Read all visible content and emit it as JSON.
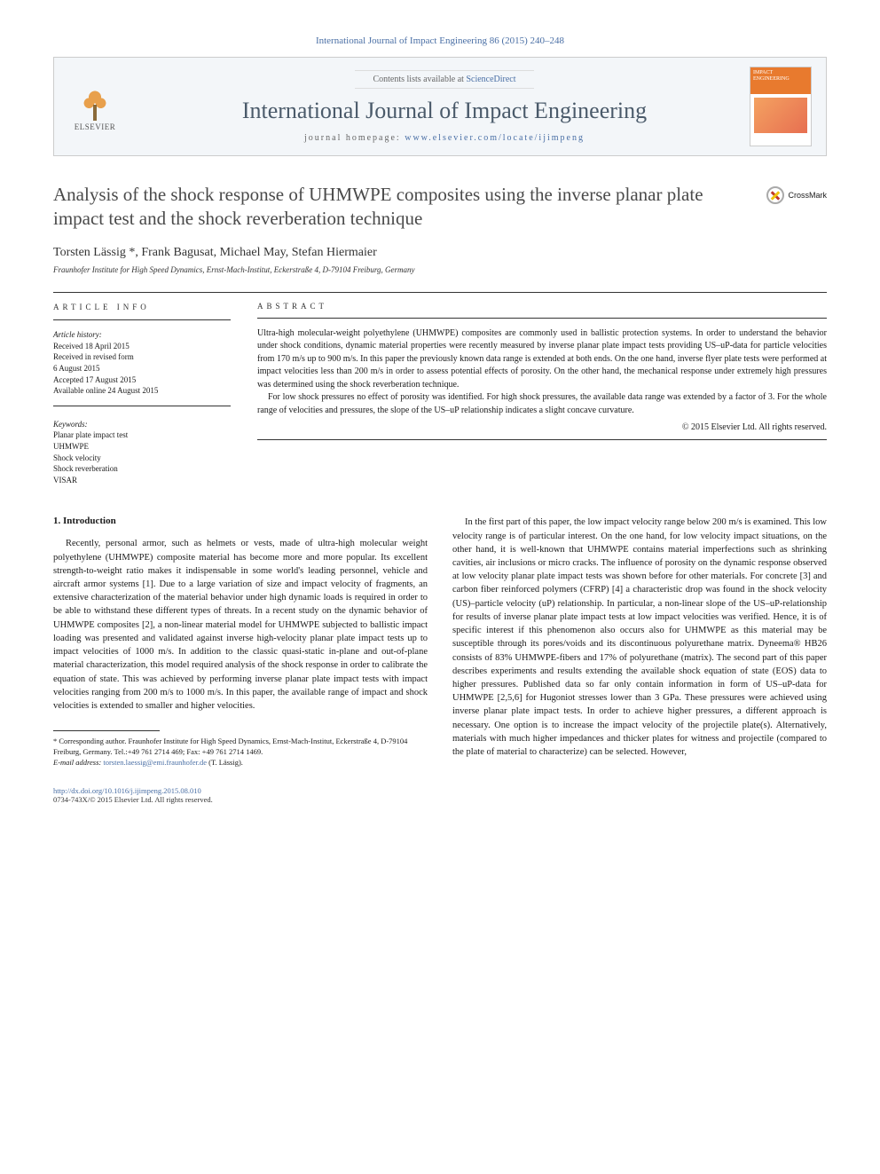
{
  "header": {
    "citation": "International Journal of Impact Engineering 86 (2015) 240–248",
    "contents_prefix": "Contents lists available at ",
    "contents_link": "ScienceDirect",
    "journal_title": "International Journal of Impact Engineering",
    "homepage_prefix": "journal homepage: ",
    "homepage_url": "www.elsevier.com/locate/ijimpeng",
    "publisher": "ELSEVIER",
    "cover_label": "IMPACT ENGINEERING"
  },
  "crossmark": "CrossMark",
  "title": "Analysis of the shock response of UHMWPE composites using the inverse planar plate impact test and the shock reverberation technique",
  "authors": "Torsten Lässig *, Frank Bagusat, Michael May, Stefan Hiermaier",
  "affiliation": "Fraunhofer Institute for High Speed Dynamics, Ernst-Mach-Institut, Eckerstraße 4, D-79104 Freiburg, Germany",
  "article_info": {
    "heading": "ARTICLE INFO",
    "history_label": "Article history:",
    "received": "Received 18 April 2015",
    "revised": "Received in revised form",
    "revised_date": "6 August 2015",
    "accepted": "Accepted 17 August 2015",
    "online": "Available online 24 August 2015",
    "keywords_label": "Keywords:",
    "keywords": [
      "Planar plate impact test",
      "UHMWPE",
      "Shock velocity",
      "Shock reverberation",
      "VISAR"
    ]
  },
  "abstract": {
    "heading": "ABSTRACT",
    "p1": "Ultra-high molecular-weight polyethylene (UHMWPE) composites are commonly used in ballistic protection systems. In order to understand the behavior under shock conditions, dynamic material properties were recently measured by inverse planar plate impact tests providing US–uP-data for particle velocities from 170 m/s up to 900 m/s. In this paper the previously known data range is extended at both ends. On the one hand, inverse flyer plate tests were performed at impact velocities less than 200 m/s in order to assess potential effects of porosity. On the other hand, the mechanical response under extremely high pressures was determined using the shock reverberation technique.",
    "p2": "For low shock pressures no effect of porosity was identified. For high shock pressures, the available data range was extended by a factor of 3. For the whole range of velocities and pressures, the slope of the US–uP relationship indicates a slight concave curvature.",
    "copyright": "© 2015 Elsevier Ltd. All rights reserved."
  },
  "body": {
    "section_num": "1.",
    "section_title": "Introduction",
    "col1_p1": "Recently, personal armor, such as helmets or vests, made of ultra-high molecular weight polyethylene (UHMWPE) composite material has become more and more popular. Its excellent strength-to-weight ratio makes it indispensable in some world's leading personnel, vehicle and aircraft armor systems [1]. Due to a large variation of size and impact velocity of fragments, an extensive characterization of the material behavior under high dynamic loads is required in order to be able to withstand these different types of threats. In a recent study on the dynamic behavior of UHMWPE composites [2], a non-linear material model for UHMWPE subjected to ballistic impact loading was presented and validated against inverse high-velocity planar plate impact tests up to impact velocities of 1000 m/s. In addition to the classic quasi-static in-plane and out-of-plane material characterization, this model required analysis of the shock response in order to calibrate the equation of state. This was achieved by performing inverse planar plate impact tests with impact velocities ranging from 200 m/s to 1000 m/s. In this paper, the available range of impact and shock velocities is extended to smaller and higher velocities.",
    "col2_p1": "In the first part of this paper, the low impact velocity range below 200 m/s is examined. This low velocity range is of particular interest. On the one hand, for low velocity impact situations, on the other hand, it is well-known that UHMWPE contains material imperfections such as shrinking cavities, air inclusions or micro cracks. The influence of porosity on the dynamic response observed at low velocity planar plate impact tests was shown before for other materials. For concrete [3] and carbon fiber reinforced polymers (CFRP) [4] a characteristic drop was found in the shock velocity (US)–particle velocity (uP) relationship. In particular, a non-linear slope of the US–uP-relationship for results of inverse planar plate impact tests at low impact velocities was verified. Hence, it is of specific interest if this phenomenon also occurs also for UHMWPE as this material may be susceptible through its pores/voids and its discontinuous polyurethane matrix. Dyneema® HB26 consists of 83% UHMWPE-fibers and 17% of polyurethane (matrix). The second part of this paper describes experiments and results extending the available shock equation of state (EOS) data to higher pressures. Published data so far only contain information in form of US–uP-data for UHMWPE [2,5,6] for Hugoniot stresses lower than 3 GPa. These pressures were achieved using inverse planar plate impact tests. In order to achieve higher pressures, a different approach is necessary. One option is to increase the impact velocity of the projectile plate(s). Alternatively, materials with much higher impedances and thicker plates for witness and projectile (compared to the plate of material to characterize) can be selected. However,"
  },
  "footnotes": {
    "corr": "* Corresponding author. Fraunhofer Institute for High Speed Dynamics, Ernst-Mach-Institut, Eckerstraße 4, D-79104 Freiburg, Germany. Tel.:+49 761 2714 469; Fax: +49 761 2714 1469.",
    "email_label": "E-mail address: ",
    "email": "torsten.laessig@emi.fraunhofer.de",
    "email_suffix": " (T. Lässig)."
  },
  "footer": {
    "doi": "http://dx.doi.org/10.1016/j.ijimpeng.2015.08.010",
    "issn": "0734-743X/© 2015 Elsevier Ltd. All rights reserved."
  },
  "refs": {
    "r1": "[1]",
    "r2": "[2]",
    "r3": "[3]",
    "r4": "[4]",
    "r256": "[2,5,6]"
  }
}
